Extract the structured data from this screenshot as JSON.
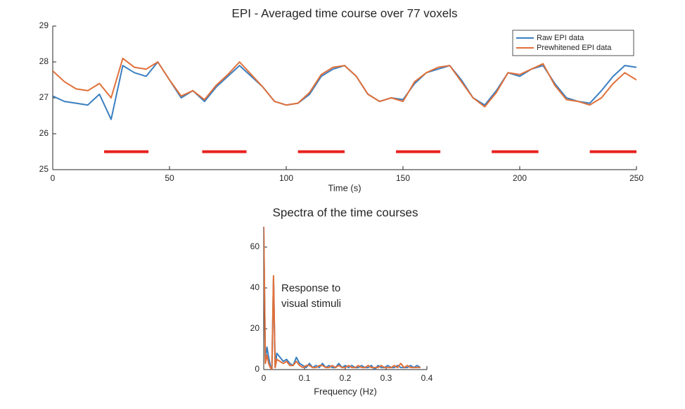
{
  "chart_data": [
    {
      "type": "line",
      "title": "EPI - Averaged time course over 77 voxels",
      "x_label": "Time (s)",
      "x": [
        0,
        5,
        10,
        15,
        20,
        25,
        30,
        35,
        40,
        45,
        50,
        55,
        60,
        65,
        70,
        75,
        80,
        85,
        90,
        95,
        100,
        105,
        110,
        115,
        120,
        125,
        130,
        135,
        140,
        145,
        150,
        155,
        160,
        165,
        170,
        175,
        180,
        185,
        190,
        195,
        200,
        205,
        210,
        215,
        220,
        225,
        230,
        235,
        240,
        245,
        250
      ],
      "series": [
        {
          "name": "Raw EPI data",
          "color": "#3b7fc0",
          "values": [
            27.05,
            26.9,
            26.85,
            26.8,
            27.1,
            26.4,
            27.9,
            27.7,
            27.6,
            28.0,
            27.5,
            27.0,
            27.2,
            26.9,
            27.3,
            27.6,
            27.9,
            27.6,
            27.3,
            26.9,
            26.8,
            26.85,
            27.1,
            27.6,
            27.8,
            27.9,
            27.6,
            27.1,
            26.9,
            27.0,
            26.95,
            27.4,
            27.7,
            27.8,
            27.9,
            27.5,
            27.0,
            26.8,
            27.2,
            27.7,
            27.6,
            27.8,
            27.9,
            27.4,
            27.0,
            26.9,
            26.85,
            27.2,
            27.6,
            27.9,
            27.85
          ]
        },
        {
          "name": "Prewhitened EPI data",
          "color": "#e0703a",
          "values": [
            27.75,
            27.45,
            27.25,
            27.2,
            27.4,
            27.0,
            28.1,
            27.85,
            27.8,
            28.0,
            27.5,
            27.05,
            27.2,
            26.95,
            27.35,
            27.65,
            28.0,
            27.65,
            27.3,
            26.9,
            26.8,
            26.85,
            27.15,
            27.65,
            27.85,
            27.9,
            27.6,
            27.1,
            26.9,
            27.0,
            26.9,
            27.45,
            27.7,
            27.85,
            27.9,
            27.45,
            27.0,
            26.75,
            27.15,
            27.7,
            27.65,
            27.8,
            27.95,
            27.35,
            26.95,
            26.9,
            26.8,
            27.0,
            27.4,
            27.7,
            27.5
          ]
        }
      ],
      "blocks": [
        [
          22,
          41
        ],
        [
          64,
          83
        ],
        [
          105,
          125
        ],
        [
          147,
          166
        ],
        [
          188,
          208
        ],
        [
          230,
          250
        ]
      ],
      "block_y": 25.5,
      "block_color": "#e8201e",
      "xlim": [
        0,
        250
      ],
      "xticks": [
        0,
        50,
        100,
        150,
        200,
        250
      ],
      "ylim": [
        25,
        29
      ],
      "yticks": [
        25,
        26,
        27,
        28,
        29
      ],
      "grid": false,
      "legend": "upper right"
    },
    {
      "type": "line",
      "title": "Spectra of the time courses",
      "x_label": "Frequency (Hz)",
      "annotation": [
        "Response to",
        "visual stimuli"
      ],
      "x": [
        0,
        0.004,
        0.008,
        0.012,
        0.016,
        0.02,
        0.024,
        0.028,
        0.032,
        0.04,
        0.048,
        0.056,
        0.064,
        0.072,
        0.08,
        0.088,
        0.096,
        0.104,
        0.112,
        0.12,
        0.128,
        0.136,
        0.144,
        0.152,
        0.16,
        0.168,
        0.176,
        0.184,
        0.192,
        0.2,
        0.208,
        0.216,
        0.224,
        0.232,
        0.24,
        0.248,
        0.256,
        0.264,
        0.272,
        0.28,
        0.288,
        0.296,
        0.304,
        0.312,
        0.32,
        0.328,
        0.336,
        0.344,
        0.352,
        0.36,
        0.368,
        0.376,
        0.384
      ],
      "series": [
        {
          "color": "#3b7fc0",
          "values": [
            70,
            5,
            11,
            6,
            2,
            0,
            45,
            1,
            8,
            6,
            4,
            5,
            3,
            2,
            6,
            3,
            2,
            1,
            3,
            1,
            2,
            1,
            3,
            1,
            2,
            1,
            1,
            3,
            1,
            2,
            1,
            2,
            1,
            1,
            2,
            1,
            1,
            2,
            0,
            2,
            1,
            1,
            2,
            1,
            1,
            2,
            1,
            1,
            1,
            2,
            1,
            2,
            1
          ]
        },
        {
          "color": "#e0703a",
          "values": [
            70,
            3,
            7,
            3,
            1,
            0,
            46,
            1,
            5,
            4,
            3,
            4,
            2,
            2,
            4,
            2,
            1,
            2,
            2,
            1,
            1,
            2,
            2,
            1,
            1,
            2,
            1,
            2,
            1,
            1,
            2,
            1,
            1,
            2,
            1,
            1,
            2,
            1,
            1,
            1,
            2,
            1,
            1,
            1,
            2,
            1,
            3,
            1,
            2,
            1,
            1,
            1,
            1
          ]
        }
      ],
      "xlim": [
        0,
        0.4
      ],
      "xticks": [
        0,
        0.1,
        0.2,
        0.3,
        0.4
      ],
      "ylim": [
        0,
        70
      ],
      "yticks": [
        0,
        20,
        40,
        60
      ],
      "grid": false
    }
  ]
}
